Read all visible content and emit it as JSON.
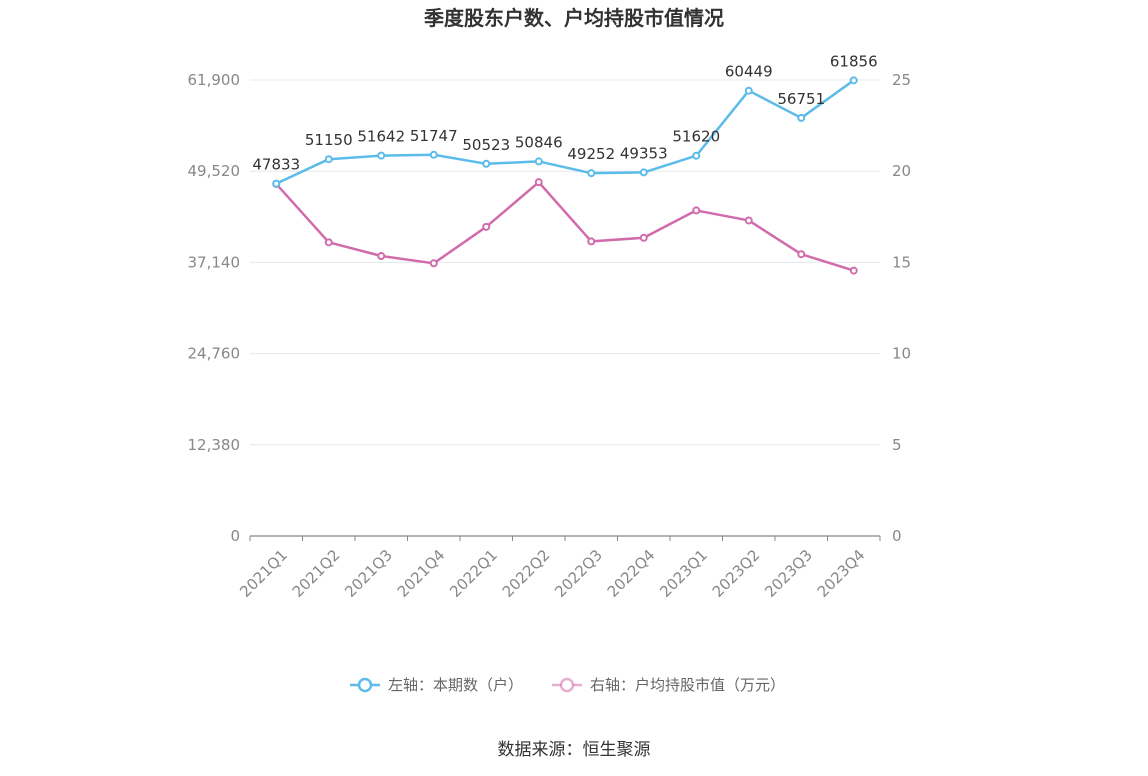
{
  "chart_data": {
    "type": "line",
    "title": "季度股东户数、户均持股市值情况",
    "categories": [
      "2021Q1",
      "2021Q2",
      "2021Q3",
      "2021Q4",
      "2022Q1",
      "2022Q2",
      "2022Q3",
      "2022Q4",
      "2023Q1",
      "2023Q2",
      "2023Q3",
      "2023Q4"
    ],
    "series": [
      {
        "name": "左轴：本期数（户）",
        "axis": "left",
        "color": "#5bbcea",
        "values": [
          47833,
          51150,
          51642,
          51747,
          50523,
          50846,
          49252,
          49353,
          51620,
          60449,
          56751,
          61856
        ],
        "labels": [
          "47833",
          "51150",
          "51642",
          "51747",
          "50523",
          "50846",
          "49252",
          "49353",
          "51620",
          "60449",
          "56751",
          "61856"
        ]
      },
      {
        "name": "右轴：户均持股市值（万元）",
        "axis": "right",
        "color": "#d16bab",
        "values": [
          19.3,
          16.1,
          15.35,
          14.95,
          16.95,
          19.4,
          16.15,
          16.35,
          17.85,
          17.3,
          15.45,
          14.55
        ]
      }
    ],
    "left_axis": {
      "ylim": [
        0,
        61900
      ],
      "ticks": [
        0,
        12380,
        24760,
        37140,
        49520,
        61900
      ],
      "tick_labels": [
        "0",
        "12,380",
        "24,760",
        "37,140",
        "49,520",
        "61,900"
      ]
    },
    "right_axis": {
      "ylim": [
        0,
        25
      ],
      "ticks": [
        0,
        5,
        10,
        15,
        20,
        25
      ],
      "tick_labels": [
        "0",
        "5",
        "10",
        "15",
        "20",
        "25"
      ]
    },
    "grid": true,
    "legend_position": "bottom",
    "source": "数据来源：恒生聚源"
  }
}
